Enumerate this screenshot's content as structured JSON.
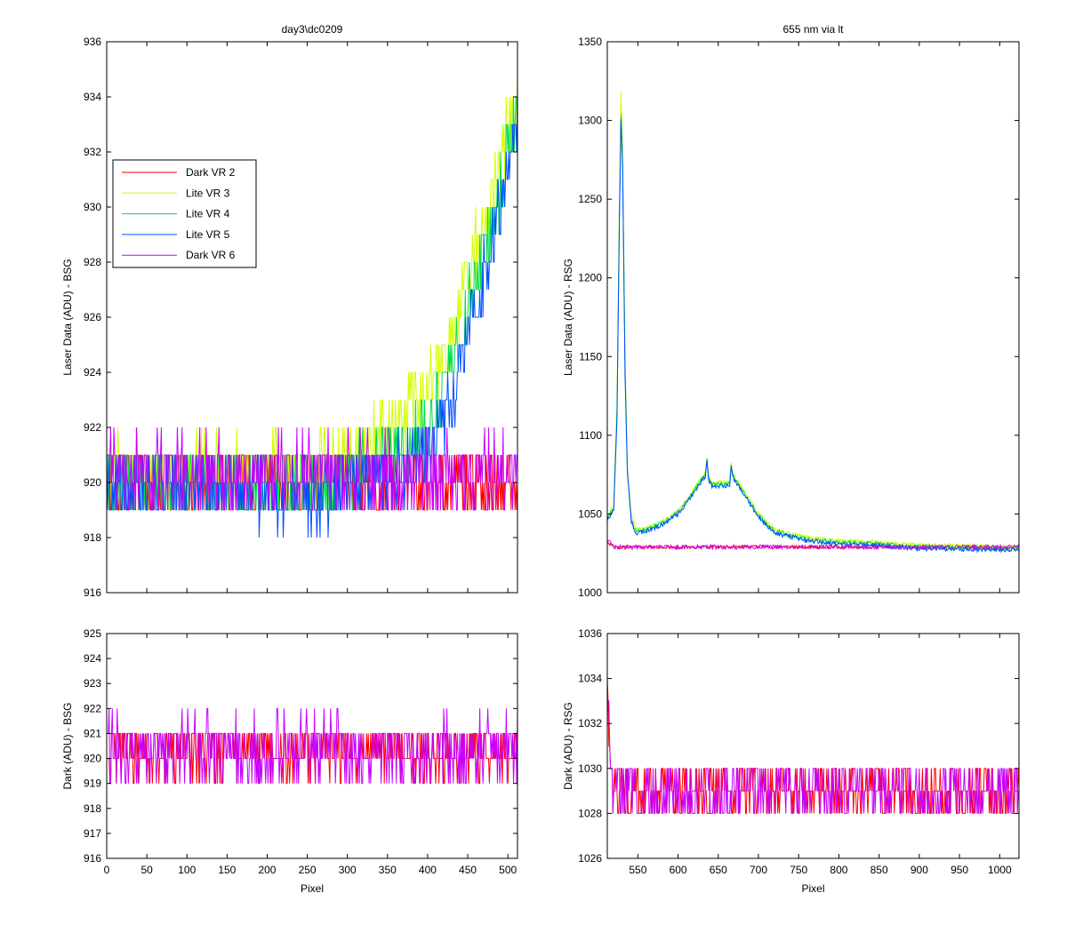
{
  "colors": {
    "Dark VR 2": "#ff0000",
    "Lite VR 3": "#d4ff00",
    "Lite VR 4": "#00dc46",
    "Lite VR 5": "#0050ff",
    "Dark VR 6": "#c800ff"
  },
  "legend": [
    "Dark VR 2",
    "Lite VR 3",
    "Lite VR 4",
    "Lite VR 5",
    "Dark VR 6"
  ],
  "chart_data": [
    {
      "id": "top-left",
      "type": "line",
      "title": "day3\\dc0209",
      "xlabel": "",
      "ylabel": "Laser Data (ADU) - BSG",
      "xlim": [
        0,
        512
      ],
      "ylim": [
        916,
        936
      ],
      "xticks": [
        0,
        50,
        100,
        150,
        200,
        250,
        300,
        350,
        400,
        450,
        500
      ],
      "xtick_labels_shown": false,
      "yticks": [
        916,
        918,
        920,
        922,
        924,
        926,
        928,
        930,
        932,
        934,
        936
      ],
      "legend_position": "upper-left",
      "series": [
        {
          "name": "Dark VR 2",
          "profile": {
            "kind": "noise",
            "base": 920.3,
            "amp": 1.1,
            "points": [
              [
                0,
                920
              ],
              [
                512,
                920
              ]
            ]
          }
        },
        {
          "name": "Lite VR 3",
          "profile": {
            "kind": "noise",
            "amp": 1.2,
            "points": [
              [
                0,
                920.5
              ],
              [
                250,
                920.3
              ],
              [
                300,
                921
              ],
              [
                350,
                921.8
              ],
              [
                400,
                923.5
              ],
              [
                430,
                925.5
              ],
              [
                460,
                928.5
              ],
              [
                490,
                931.5
              ],
              [
                512,
                934.5
              ]
            ]
          }
        },
        {
          "name": "Lite VR 4",
          "profile": {
            "kind": "noise",
            "amp": 1.2,
            "points": [
              [
                0,
                920
              ],
              [
                250,
                919.8
              ],
              [
                300,
                920.3
              ],
              [
                350,
                920.8
              ],
              [
                400,
                922
              ],
              [
                430,
                924
              ],
              [
                460,
                927.5
              ],
              [
                490,
                930.5
              ],
              [
                512,
                934
              ]
            ]
          }
        },
        {
          "name": "Lite VR 5",
          "profile": {
            "kind": "noise",
            "amp": 1.2,
            "points": [
              [
                0,
                920
              ],
              [
                250,
                919.5
              ],
              [
                300,
                919.8
              ],
              [
                350,
                920.3
              ],
              [
                400,
                921.2
              ],
              [
                430,
                923
              ],
              [
                460,
                926.5
              ],
              [
                490,
                930
              ],
              [
                512,
                933.5
              ]
            ]
          }
        },
        {
          "name": "Dark VR 6",
          "profile": {
            "kind": "noise",
            "amp": 1.3,
            "points": [
              [
                0,
                920.3
              ],
              [
                512,
                920.3
              ]
            ]
          }
        }
      ]
    },
    {
      "id": "top-right",
      "type": "line",
      "title": "655 nm via lt",
      "xlabel": "",
      "ylabel": "Laser Data (ADU) - RSG",
      "xlim": [
        512,
        1024
      ],
      "ylim": [
        1000,
        1350
      ],
      "xticks": [
        550,
        600,
        650,
        700,
        750,
        800,
        850,
        900,
        950,
        1000
      ],
      "xtick_labels_shown": false,
      "yticks": [
        1000,
        1050,
        1100,
        1150,
        1200,
        1250,
        1300,
        1350
      ],
      "series": [
        {
          "name": "Dark VR 2",
          "profile": {
            "kind": "noise",
            "amp": 1.2,
            "points": [
              [
                512,
                1032
              ],
              [
                520,
                1029
              ],
              [
                1024,
                1029
              ]
            ]
          }
        },
        {
          "name": "Lite VR 3",
          "profile": {
            "kind": "noise",
            "amp": 1.5,
            "points": [
              [
                512,
                1048
              ],
              [
                520,
                1055
              ],
              [
                524,
                1120
              ],
              [
                527,
                1250
              ],
              [
                529,
                1317
              ],
              [
                531,
                1280
              ],
              [
                534,
                1150
              ],
              [
                537,
                1080
              ],
              [
                542,
                1048
              ],
              [
                548,
                1040
              ],
              [
                560,
                1041
              ],
              [
                580,
                1045
              ],
              [
                600,
                1052
              ],
              [
                615,
                1062
              ],
              [
                628,
                1072
              ],
              [
                634,
                1076
              ],
              [
                636,
                1087
              ],
              [
                638,
                1074
              ],
              [
                642,
                1070
              ],
              [
                664,
                1070
              ],
              [
                666,
                1082
              ],
              [
                668,
                1075
              ],
              [
                680,
                1066
              ],
              [
                700,
                1050
              ],
              [
                720,
                1040
              ],
              [
                760,
                1035
              ],
              [
                800,
                1033
              ],
              [
                850,
                1032
              ],
              [
                900,
                1030
              ],
              [
                1024,
                1029
              ]
            ]
          }
        },
        {
          "name": "Lite VR 4",
          "profile": {
            "kind": "noise",
            "amp": 1.5,
            "points": [
              [
                512,
                1047
              ],
              [
                520,
                1054
              ],
              [
                524,
                1115
              ],
              [
                527,
                1240
              ],
              [
                529,
                1303
              ],
              [
                531,
                1275
              ],
              [
                534,
                1145
              ],
              [
                537,
                1078
              ],
              [
                542,
                1046
              ],
              [
                548,
                1039
              ],
              [
                560,
                1040
              ],
              [
                580,
                1044
              ],
              [
                600,
                1051
              ],
              [
                615,
                1061
              ],
              [
                628,
                1071
              ],
              [
                634,
                1075
              ],
              [
                636,
                1086
              ],
              [
                638,
                1073
              ],
              [
                642,
                1069
              ],
              [
                664,
                1069
              ],
              [
                666,
                1081
              ],
              [
                668,
                1074
              ],
              [
                680,
                1065
              ],
              [
                700,
                1049
              ],
              [
                720,
                1039
              ],
              [
                760,
                1034
              ],
              [
                800,
                1032
              ],
              [
                850,
                1031
              ],
              [
                900,
                1029
              ],
              [
                1024,
                1028
              ]
            ]
          }
        },
        {
          "name": "Lite VR 5",
          "profile": {
            "kind": "noise",
            "amp": 1.5,
            "points": [
              [
                512,
                1046
              ],
              [
                520,
                1053
              ],
              [
                524,
                1110
              ],
              [
                527,
                1235
              ],
              [
                529,
                1300
              ],
              [
                531,
                1270
              ],
              [
                534,
                1140
              ],
              [
                537,
                1076
              ],
              [
                542,
                1045
              ],
              [
                548,
                1038
              ],
              [
                560,
                1039
              ],
              [
                580,
                1043
              ],
              [
                600,
                1050
              ],
              [
                615,
                1060
              ],
              [
                628,
                1070
              ],
              [
                634,
                1074
              ],
              [
                636,
                1085
              ],
              [
                638,
                1072
              ],
              [
                642,
                1068
              ],
              [
                664,
                1068
              ],
              [
                666,
                1080
              ],
              [
                668,
                1073
              ],
              [
                680,
                1064
              ],
              [
                700,
                1048
              ],
              [
                720,
                1038
              ],
              [
                760,
                1033
              ],
              [
                800,
                1031
              ],
              [
                850,
                1030
              ],
              [
                900,
                1028
              ],
              [
                1024,
                1027
              ]
            ]
          }
        },
        {
          "name": "Dark VR 6",
          "profile": {
            "kind": "noise",
            "amp": 1.3,
            "points": [
              [
                512,
                1034
              ],
              [
                520,
                1029
              ],
              [
                1024,
                1029
              ]
            ]
          }
        }
      ]
    },
    {
      "id": "bottom-left",
      "type": "line",
      "title": "",
      "xlabel": "Pixel",
      "ylabel": "Dark (ADU) - BSG",
      "xlim": [
        0,
        512
      ],
      "ylim": [
        916,
        925
      ],
      "xticks": [
        0,
        50,
        100,
        150,
        200,
        250,
        300,
        350,
        400,
        450,
        500
      ],
      "xtick_labels_shown": true,
      "yticks": [
        916,
        917,
        918,
        919,
        920,
        921,
        922,
        923,
        924,
        925
      ],
      "series": [
        {
          "name": "Dark VR 2",
          "profile": {
            "kind": "noise",
            "amp": 1.1,
            "points": [
              [
                0,
                920.3
              ],
              [
                512,
                920.3
              ]
            ]
          }
        },
        {
          "name": "Dark VR 6",
          "profile": {
            "kind": "noise",
            "amp": 1.3,
            "points": [
              [
                0,
                920.3
              ],
              [
                512,
                920.3
              ]
            ]
          }
        }
      ]
    },
    {
      "id": "bottom-right",
      "type": "line",
      "title": "",
      "xlabel": "Pixel",
      "ylabel": "Dark (ADU) - RSG",
      "xlim": [
        512,
        1024
      ],
      "ylim": [
        1026,
        1036
      ],
      "xticks": [
        550,
        600,
        650,
        700,
        750,
        800,
        850,
        900,
        950,
        1000
      ],
      "xtick_labels_shown": true,
      "yticks": [
        1026,
        1028,
        1030,
        1032,
        1034,
        1036
      ],
      "series": [
        {
          "name": "Dark VR 2",
          "profile": {
            "kind": "noise",
            "amp": 1.1,
            "points": [
              [
                512,
                1033
              ],
              [
                518,
                1029
              ],
              [
                1024,
                1029
              ]
            ]
          }
        },
        {
          "name": "Dark VR 6",
          "profile": {
            "kind": "noise",
            "amp": 1.3,
            "points": [
              [
                512,
                1034
              ],
              [
                518,
                1029
              ],
              [
                1024,
                1029
              ]
            ]
          }
        }
      ]
    }
  ]
}
